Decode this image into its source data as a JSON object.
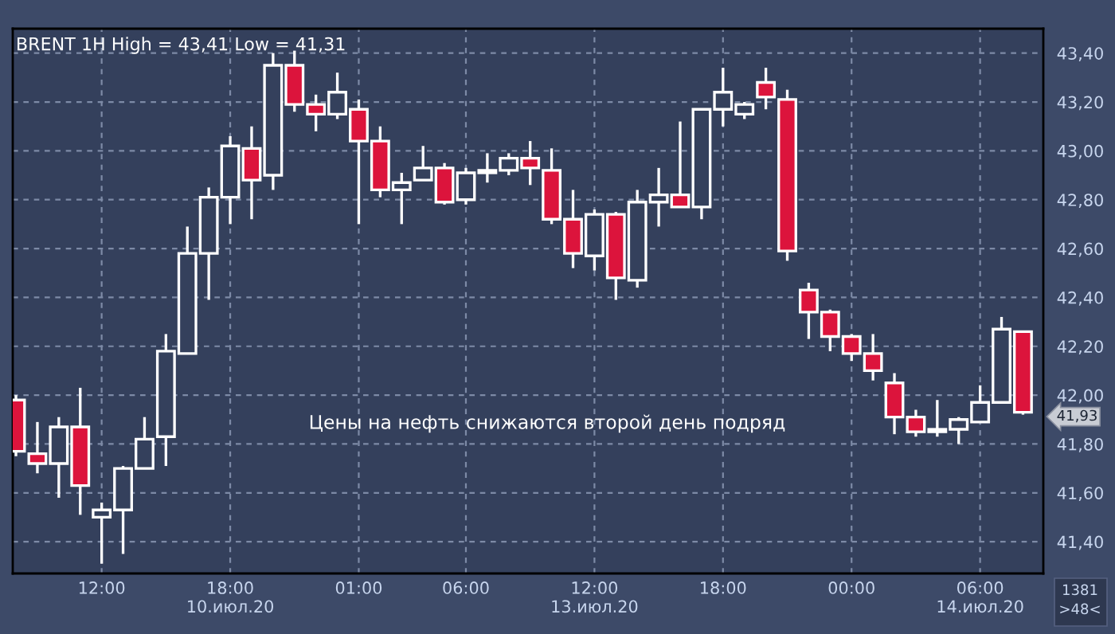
{
  "chart_data": {
    "type": "candlestick",
    "title": "BRENT 1H High = 43,41 Low = 41,31",
    "annotations": [
      "Цены на нефть снижаются второй день подряд",
      "1381",
      ">48<",
      "41,93"
    ],
    "categories": [
      null,
      null,
      null,
      null,
      "12:00",
      null,
      null,
      null,
      null,
      null,
      "18:00\n10.июл.20",
      null,
      null,
      null,
      null,
      null,
      "01:00",
      null,
      null,
      null,
      null,
      "06:00",
      null,
      null,
      null,
      null,
      null,
      "12:00\n13.июл.20",
      null,
      null,
      null,
      null,
      null,
      "18:00",
      null,
      null,
      null,
      null,
      null,
      "00:00",
      null,
      null,
      null,
      null,
      null,
      "06:00\n14.июл.20",
      null,
      null
    ],
    "ohlc": [
      [
        41.98,
        42.0,
        41.75,
        41.77
      ],
      [
        41.76,
        41.89,
        41.68,
        41.72
      ],
      [
        41.72,
        41.91,
        41.58,
        41.87
      ],
      [
        41.87,
        42.03,
        41.51,
        41.63
      ],
      [
        41.5,
        41.56,
        41.31,
        41.53
      ],
      [
        41.53,
        41.71,
        41.35,
        41.7
      ],
      [
        41.7,
        41.91,
        41.7,
        41.82
      ],
      [
        41.83,
        42.25,
        41.71,
        42.18
      ],
      [
        42.17,
        42.69,
        42.17,
        42.58
      ],
      [
        42.58,
        42.85,
        42.39,
        42.81
      ],
      [
        42.81,
        43.06,
        42.7,
        43.02
      ],
      [
        43.01,
        43.1,
        42.72,
        42.88
      ],
      [
        42.9,
        43.4,
        42.84,
        43.35
      ],
      [
        43.35,
        43.41,
        43.16,
        43.19
      ],
      [
        43.19,
        43.23,
        43.08,
        43.15
      ],
      [
        43.15,
        43.32,
        43.13,
        43.24
      ],
      [
        43.17,
        43.21,
        42.7,
        43.04
      ],
      [
        43.04,
        43.1,
        42.81,
        42.84
      ],
      [
        42.84,
        42.91,
        42.7,
        42.87
      ],
      [
        42.88,
        43.02,
        42.88,
        42.93
      ],
      [
        42.93,
        42.95,
        42.78,
        42.79
      ],
      [
        42.8,
        42.93,
        42.78,
        42.91
      ],
      [
        42.91,
        42.99,
        42.87,
        42.92
      ],
      [
        42.92,
        42.99,
        42.9,
        42.97
      ],
      [
        42.97,
        43.04,
        42.86,
        42.93
      ],
      [
        42.92,
        43.01,
        42.7,
        42.72
      ],
      [
        42.72,
        42.84,
        42.52,
        42.58
      ],
      [
        42.57,
        42.76,
        42.51,
        42.74
      ],
      [
        42.74,
        42.75,
        42.39,
        42.48
      ],
      [
        42.47,
        42.84,
        42.44,
        42.79
      ],
      [
        42.79,
        42.93,
        42.69,
        42.82
      ],
      [
        42.82,
        43.12,
        42.77,
        42.77
      ],
      [
        42.77,
        43.17,
        42.72,
        43.17
      ],
      [
        43.17,
        43.34,
        43.1,
        43.24
      ],
      [
        43.15,
        43.2,
        43.13,
        43.19
      ],
      [
        43.28,
        43.34,
        43.17,
        43.22
      ],
      [
        43.21,
        43.25,
        42.55,
        42.59
      ],
      [
        42.43,
        42.46,
        42.23,
        42.34
      ],
      [
        42.34,
        42.35,
        42.18,
        42.24
      ],
      [
        42.24,
        42.25,
        42.14,
        42.17
      ],
      [
        42.17,
        42.25,
        42.06,
        42.1
      ],
      [
        42.05,
        42.09,
        41.84,
        41.91
      ],
      [
        41.91,
        41.94,
        41.83,
        41.85
      ],
      [
        41.85,
        41.98,
        41.83,
        41.86
      ],
      [
        41.86,
        41.91,
        41.8,
        41.9
      ],
      [
        41.89,
        42.04,
        41.89,
        41.97
      ],
      [
        41.97,
        42.32,
        41.97,
        42.27
      ],
      [
        42.26,
        42.26,
        41.92,
        41.93
      ]
    ],
    "colors": [
      "#dc143c",
      "#dc143c",
      "#34405c",
      "#dc143c",
      "#34405c",
      "#34405c",
      "#34405c",
      "#34405c",
      "#34405c",
      "#34405c",
      "#34405c",
      "#dc143c",
      "#34405c",
      "#dc143c",
      "#dc143c",
      "#34405c",
      "#dc143c",
      "#dc143c",
      "#34405c",
      "#34405c",
      "#dc143c",
      "#34405c",
      "#34405c",
      "#34405c",
      "#dc143c",
      "#dc143c",
      "#dc143c",
      "#34405c",
      "#dc143c",
      "#34405c",
      "#34405c",
      "#dc143c",
      "#34405c",
      "#34405c",
      "#34405c",
      "#dc143c",
      "#dc143c",
      "#dc143c",
      "#dc143c",
      "#dc143c",
      "#dc143c",
      "#dc143c",
      "#dc143c",
      "#34405c",
      "#34405c",
      "#34405c",
      "#34405c",
      "#dc143c"
    ],
    "ylim": [
      41.27,
      43.5
    ],
    "yticks": [
      {
        "value": 41.4,
        "label": "41,40"
      },
      {
        "value": 41.6,
        "label": "41,60"
      },
      {
        "value": 41.8,
        "label": "41,80"
      },
      {
        "value": 42.0,
        "label": "42,00"
      },
      {
        "value": 42.2,
        "label": "42,20"
      },
      {
        "value": 42.4,
        "label": "42,40"
      },
      {
        "value": 42.6,
        "label": "42,60"
      },
      {
        "value": 42.8,
        "label": "42,80"
      },
      {
        "value": 43.0,
        "label": "43,00"
      },
      {
        "value": 43.2,
        "label": "43,20"
      },
      {
        "value": 43.4,
        "label": "43,40"
      }
    ],
    "grid": true
  }
}
